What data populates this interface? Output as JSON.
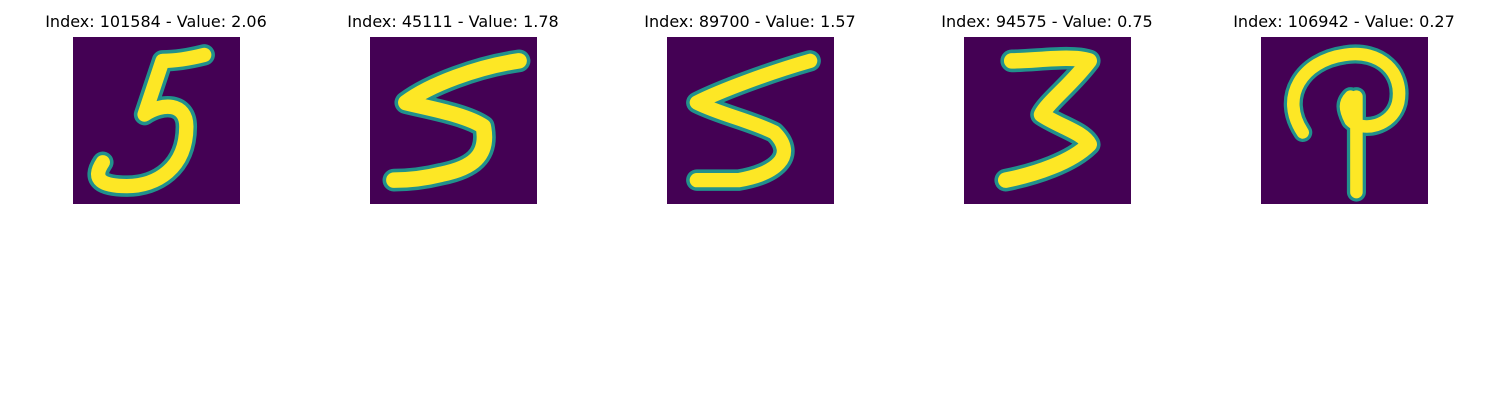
{
  "colors": {
    "background": "#440154",
    "stroke": "#fde725",
    "edge": "#21918c"
  },
  "panels": [
    {
      "title": "Index: 101584 - Value: 2.06",
      "digit": "5"
    },
    {
      "title": "Index: 45111 - Value: 1.78",
      "digit": "5"
    },
    {
      "title": "Index: 89700 - Value: 1.57",
      "digit": "5"
    },
    {
      "title": "Index: 94575 - Value: 0.75",
      "digit": "3"
    },
    {
      "title": "Index: 106942 - Value: 0.27",
      "digit": "9"
    }
  ]
}
